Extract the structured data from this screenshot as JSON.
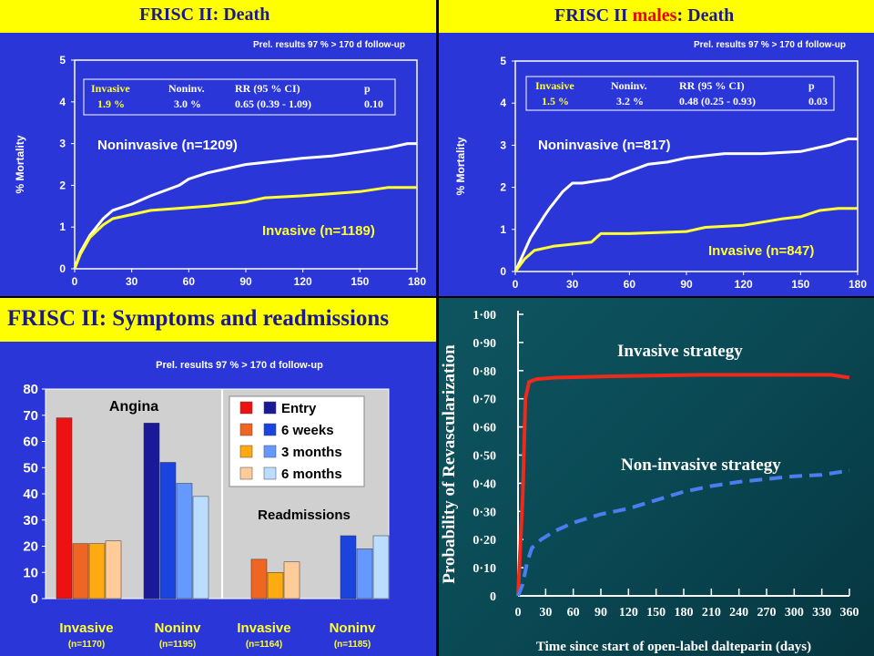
{
  "panels": {
    "death_all": {
      "title": "FRISC II: Death",
      "note": "Prel. results 97 % > 170 d follow-up",
      "table": {
        "headers": [
          "Invasive",
          "Noninv.",
          "RR (95 % CI)",
          "p"
        ],
        "values": [
          "1.9 %",
          "3.0 %",
          "0.65 (0.39 - 1.09)",
          "0.10"
        ]
      }
    },
    "death_males": {
      "title_prefix": "FRISC II ",
      "title_highlight": "males",
      "title_suffix": ": Death",
      "note": "Prel. results 97 % > 170 d follow-up",
      "table": {
        "headers": [
          "Invasive",
          "Noninv.",
          "RR (95 % CI)",
          "p"
        ],
        "values": [
          "1.5 %",
          "3.2 %",
          "0.48 (0.25 - 0.93)",
          "0.03"
        ]
      }
    },
    "symptoms": {
      "title": "FRISC II: Symptoms and readmissions",
      "note": "Prel. results 97 % > 170 d follow-up",
      "section_angina": "Angina",
      "section_readmissions": "Readmissions"
    },
    "revasc": {
      "strategy_invasive": "Invasive strategy",
      "strategy_noninvasive": "Non-invasive strategy"
    }
  },
  "colors": {
    "panel_bg": "#2a36d8",
    "banner": "#ffff00",
    "title_text": "#1a1a8c",
    "invasive_line": "#ffff33",
    "noninvasive_line": "#ffffff",
    "revasc_invasive": "#ee2a1a",
    "revasc_noninvasive": "#4a7ef0"
  },
  "chart_data": [
    {
      "type": "line",
      "title": "FRISC II: Death",
      "ylabel": "% Mortality",
      "xlabel": "",
      "xlim": [
        0,
        180
      ],
      "ylim": [
        0,
        5
      ],
      "xticks": [
        0,
        30,
        60,
        90,
        120,
        150,
        180
      ],
      "yticks": [
        0,
        1,
        2,
        3,
        4,
        5
      ],
      "series": [
        {
          "name": "Noninvasive (n=1209)",
          "color": "#ffffff",
          "x": [
            0,
            3,
            8,
            15,
            20,
            30,
            40,
            55,
            60,
            70,
            90,
            100,
            120,
            135,
            150,
            165,
            175,
            180
          ],
          "y": [
            0,
            0.4,
            0.8,
            1.2,
            1.4,
            1.55,
            1.75,
            2.0,
            2.15,
            2.3,
            2.5,
            2.55,
            2.65,
            2.7,
            2.8,
            2.9,
            3.0,
            3.0
          ]
        },
        {
          "name": "Invasive (n=1189)",
          "color": "#ffff33",
          "x": [
            0,
            3,
            8,
            15,
            20,
            30,
            40,
            55,
            70,
            90,
            100,
            120,
            135,
            150,
            165,
            180
          ],
          "y": [
            0,
            0.35,
            0.75,
            1.05,
            1.2,
            1.3,
            1.4,
            1.45,
            1.5,
            1.6,
            1.7,
            1.75,
            1.8,
            1.85,
            1.95,
            1.95
          ]
        }
      ]
    },
    {
      "type": "line",
      "title": "FRISC II males: Death",
      "ylabel": "% Mortality",
      "xlabel": "",
      "xlim": [
        0,
        180
      ],
      "ylim": [
        0,
        5
      ],
      "xticks": [
        0,
        30,
        60,
        90,
        120,
        150,
        180
      ],
      "yticks": [
        0,
        1,
        2,
        3,
        4,
        5
      ],
      "series": [
        {
          "name": "Noninvasive (n=817)",
          "color": "#ffffff",
          "x": [
            0,
            3,
            8,
            15,
            18,
            25,
            30,
            35,
            50,
            55,
            70,
            80,
            90,
            100,
            110,
            130,
            150,
            165,
            175,
            180
          ],
          "y": [
            0,
            0.3,
            0.8,
            1.3,
            1.5,
            1.9,
            2.1,
            2.1,
            2.2,
            2.3,
            2.55,
            2.6,
            2.7,
            2.75,
            2.8,
            2.8,
            2.85,
            3.0,
            3.15,
            3.15
          ]
        },
        {
          "name": "Invasive (n=847)",
          "color": "#ffff33",
          "x": [
            0,
            5,
            10,
            20,
            40,
            45,
            60,
            90,
            100,
            120,
            140,
            150,
            160,
            170,
            180
          ],
          "y": [
            0,
            0.3,
            0.5,
            0.6,
            0.7,
            0.9,
            0.9,
            0.95,
            1.05,
            1.1,
            1.25,
            1.3,
            1.45,
            1.5,
            1.5
          ]
        }
      ]
    },
    {
      "type": "bar",
      "title": "FRISC II: Symptoms and readmissions",
      "ylim": [
        0,
        80
      ],
      "yticks": [
        0,
        10,
        20,
        30,
        40,
        50,
        60,
        70,
        80
      ],
      "legend": [
        "Entry",
        "6 weeks",
        "3 months",
        "6 months"
      ],
      "invasive_colors": [
        "#ee1111",
        "#ee6622",
        "#ffaa11",
        "#ffcc99"
      ],
      "noninvasive_colors": [
        "#1a1a99",
        "#1a44dd",
        "#6699ff",
        "#bbddff"
      ],
      "groups": [
        {
          "label": "Invasive",
          "n": "(n=1170)",
          "section": "Angina",
          "strategy": "invasive",
          "values": [
            69,
            21,
            21,
            22
          ]
        },
        {
          "label": "Noninv",
          "n": "(n=1195)",
          "section": "Angina",
          "strategy": "noninvasive",
          "values": [
            67,
            52,
            44,
            39
          ]
        },
        {
          "label": "Invasive",
          "n": "(n=1164)",
          "section": "Readmissions",
          "strategy": "invasive",
          "values": [
            null,
            15,
            10,
            14
          ]
        },
        {
          "label": "Noninv",
          "n": "(n=1185)",
          "section": "Readmissions",
          "strategy": "noninvasive",
          "values": [
            null,
            24,
            19,
            24
          ]
        }
      ]
    },
    {
      "type": "line",
      "title": "",
      "ylabel": "Probability of Revascularization",
      "xlabel": "Time since start of open-label dalteparin (days)",
      "xlim": [
        0,
        360
      ],
      "ylim": [
        0,
        1
      ],
      "xticks": [
        0,
        30,
        60,
        90,
        120,
        150,
        180,
        210,
        240,
        270,
        300,
        330,
        360
      ],
      "yticks": [
        "0",
        "0·10",
        "0·20",
        "0·30",
        "0·40",
        "0·50",
        "0·60",
        "0·70",
        "0·80",
        "0·90",
        "1·00"
      ],
      "series": [
        {
          "name": "Invasive strategy",
          "color": "#ee2a1a",
          "x": [
            0,
            5,
            8,
            12,
            20,
            40,
            100,
            200,
            300,
            340,
            360
          ],
          "y": [
            0,
            0.35,
            0.7,
            0.76,
            0.77,
            0.775,
            0.78,
            0.785,
            0.785,
            0.785,
            0.775
          ]
        },
        {
          "name": "Non-invasive strategy",
          "color": "#4a7ef0",
          "x": [
            0,
            5,
            10,
            15,
            25,
            40,
            60,
            90,
            120,
            150,
            180,
            210,
            240,
            270,
            300,
            330,
            360
          ],
          "y": [
            0,
            0.04,
            0.12,
            0.17,
            0.2,
            0.23,
            0.26,
            0.29,
            0.31,
            0.34,
            0.37,
            0.39,
            0.405,
            0.415,
            0.425,
            0.43,
            0.445
          ]
        }
      ]
    }
  ]
}
